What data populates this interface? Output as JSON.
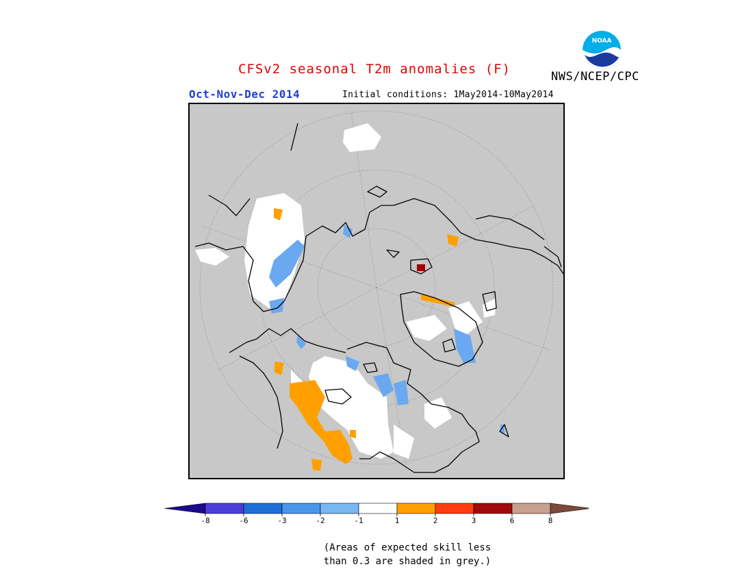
{
  "title": "CFSv2 seasonal T2m anomalies (F)",
  "agency": "NWS/NCEP/CPC",
  "season": "Oct-Nov-Dec 2014",
  "initial_conditions": "Initial conditions: 1May2014-10May2014",
  "logo_text": "NOAA",
  "note_line1": "(Areas of expected skill less",
  "note_line2": "than 0.3 are shaded in grey.)",
  "colors": {
    "background_grey": "#c8c8c8",
    "near_normal": "#ffffff",
    "cold": "#6aa9ef",
    "warm": "#ffa000",
    "hot": "#a00000",
    "coast": "#000000"
  },
  "legend": {
    "tick_labels": [
      "-8",
      "-6",
      "-3",
      "-2",
      "-1",
      "1",
      "2",
      "3",
      "6",
      "8"
    ],
    "bins": [
      {
        "range": "< -8",
        "color": "#1a0a8c"
      },
      {
        "range": "-8 to -6",
        "color": "#4a3ed8"
      },
      {
        "range": "-6 to -3",
        "color": "#1e6ed6"
      },
      {
        "range": "-3 to -2",
        "color": "#4a96ea"
      },
      {
        "range": "-2 to -1",
        "color": "#7ab8f2"
      },
      {
        "range": "-1 to 1",
        "color": "#ffffff"
      },
      {
        "range": "1 to 2",
        "color": "#ffa000"
      },
      {
        "range": "2 to 3",
        "color": "#ff3c10"
      },
      {
        "range": "3 to 6",
        "color": "#a00a0a"
      },
      {
        "range": "6 to 8",
        "color": "#c8a090"
      },
      {
        "range": "> 8",
        "color": "#7a4a3a"
      }
    ]
  }
}
